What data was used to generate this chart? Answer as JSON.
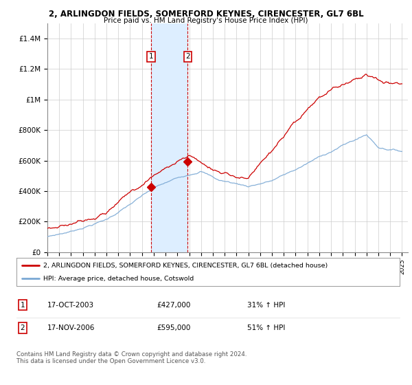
{
  "title1": "2, ARLINGDON FIELDS, SOMERFORD KEYNES, CIRENCESTER, GL7 6BL",
  "title2": "Price paid vs. HM Land Registry's House Price Index (HPI)",
  "legend_line1": "2, ARLINGDON FIELDS, SOMERFORD KEYNES, CIRENCESTER, GL7 6BL (detached house)",
  "legend_line2": "HPI: Average price, detached house, Cotswold",
  "purchase1_date": "17-OCT-2003",
  "purchase1_price": 427000,
  "purchase1_hpi_pct": "31%",
  "purchase2_date": "17-NOV-2006",
  "purchase2_price": 595000,
  "purchase2_hpi_pct": "51%",
  "copyright": "Contains HM Land Registry data © Crown copyright and database right 2024.\nThis data is licensed under the Open Government Licence v3.0.",
  "red_color": "#cc0000",
  "blue_color": "#7aa8d4",
  "shaded_color": "#ddeeff",
  "background_color": "#ffffff",
  "ylim": [
    0,
    1500000
  ],
  "yticks": [
    0,
    200000,
    400000,
    600000,
    800000,
    1000000,
    1200000,
    1400000
  ],
  "ytick_labels": [
    "£0",
    "£200K",
    "£400K",
    "£600K",
    "£800K",
    "£1M",
    "£1.2M",
    "£1.4M"
  ],
  "purchase1_year": 2003.79,
  "purchase2_year": 2006.88
}
